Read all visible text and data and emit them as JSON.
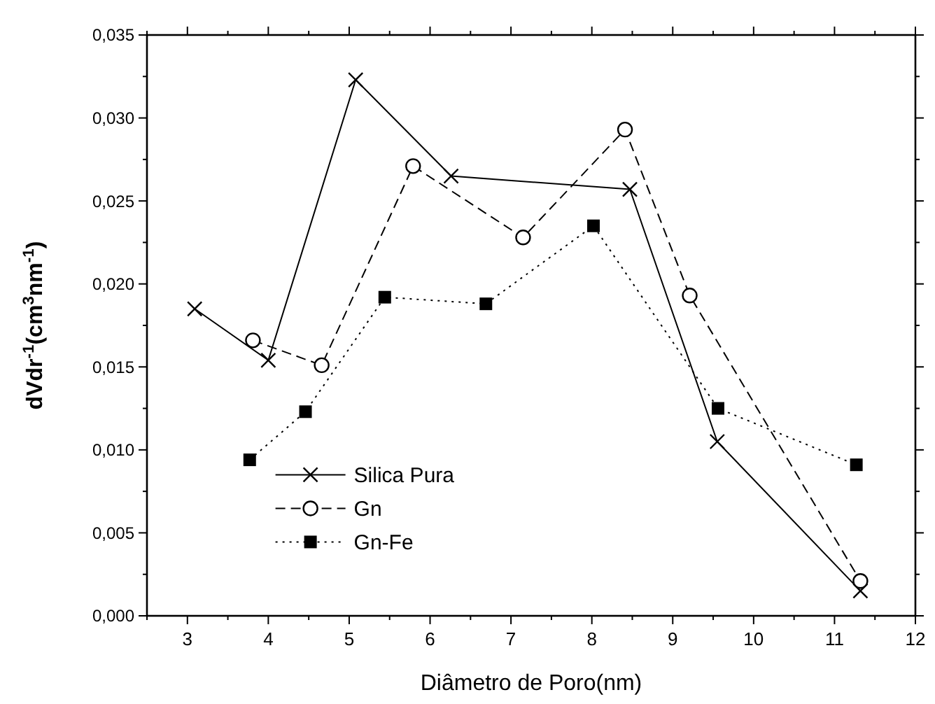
{
  "chart_data": {
    "type": "line",
    "xlabel": "Diâmetro de Poro(nm)",
    "ylabel": "dVdr$^{-1}$(cm$^{3}$nm$^{-1}$)",
    "xlim": [
      2.5,
      12
    ],
    "ylim": [
      0,
      0.035
    ],
    "xticks": [
      3,
      4,
      5,
      6,
      7,
      8,
      9,
      10,
      11,
      12
    ],
    "yticks": [
      {
        "value": 0,
        "label": "0,000"
      },
      {
        "value": 0.005,
        "label": "0,005"
      },
      {
        "value": 0.01,
        "label": "0,010"
      },
      {
        "value": 0.015,
        "label": "0,015"
      },
      {
        "value": 0.02,
        "label": "0,020"
      },
      {
        "value": 0.025,
        "label": "0,025"
      },
      {
        "value": 0.03,
        "label": "0,030"
      },
      {
        "value": 0.035,
        "label": "0,035"
      }
    ],
    "grid": false,
    "legend": "bottom left",
    "series": [
      {
        "name": "Silica Pura",
        "color": "#000000",
        "marker": "cross",
        "line_style": "solid",
        "x": [
          3.09,
          4.0,
          5.08,
          6.26,
          8.47,
          9.55,
          11.32
        ],
        "values": [
          0.0185,
          0.0154,
          0.0323,
          0.0265,
          0.0257,
          0.0105,
          0.0015
        ]
      },
      {
        "name": "Gn",
        "color": "#000000",
        "marker": "circle",
        "line_style": "dashed",
        "x": [
          3.81,
          4.66,
          5.79,
          7.15,
          8.41,
          9.21,
          11.32
        ],
        "values": [
          0.0166,
          0.0151,
          0.0271,
          0.0228,
          0.0293,
          0.0193,
          0.0021
        ]
      },
      {
        "name": "Gn-Fe",
        "color": "#000000",
        "marker": "square",
        "line_style": "dotted",
        "x": [
          3.77,
          4.46,
          5.44,
          6.69,
          8.02,
          9.56,
          11.27
        ],
        "values": [
          0.0094,
          0.0123,
          0.0192,
          0.0188,
          0.0235,
          0.0125,
          0.0091
        ]
      }
    ]
  }
}
